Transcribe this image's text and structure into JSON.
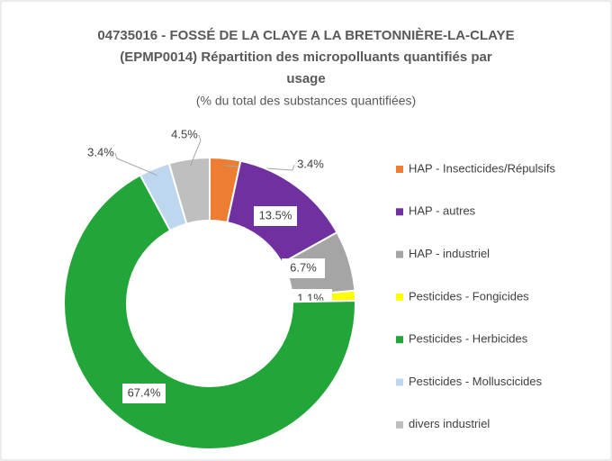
{
  "chart_data": {
    "type": "donut",
    "title": [
      "04735016 - FOSSÉ DE LA CLAYE A LA BRETONNIÈRE-LA-CLAYE",
      "(EPMP0014)  Répartition des micropolluants quantifiés par",
      "usage"
    ],
    "subtitle": "(% du total des substances quantifiées)",
    "categories": [
      "HAP - Insecticides/Répulsifs",
      "HAP - autres",
      "HAP - industriel",
      "Pesticides - Fongicides",
      "Pesticides - Herbicides",
      "Pesticides - Molluscicides",
      "divers industriel"
    ],
    "values": [
      3.4,
      13.5,
      6.7,
      1.1,
      67.4,
      3.4,
      4.5
    ],
    "value_labels": [
      "3.4%",
      "13.5%",
      "6.7%",
      "1.1%",
      "67.4%",
      "3.4%",
      "4.5%"
    ],
    "colors": [
      "#ed7d31",
      "#7030a0",
      "#a5a5a5",
      "#ffff00",
      "#22a63a",
      "#bdd7ee",
      "#bfbfbf"
    ],
    "legend": "right"
  }
}
